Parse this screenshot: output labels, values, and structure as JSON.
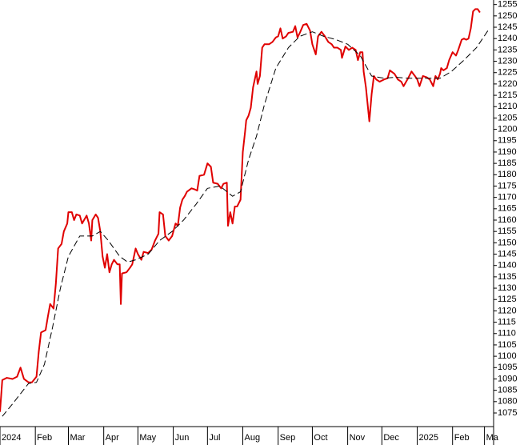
{
  "chart_data": {
    "type": "line",
    "xlim": [
      0,
      433
    ],
    "ylim": [
      1069,
      1257
    ],
    "xticks": [
      {
        "value": 0,
        "label": "2024"
      },
      {
        "value": 31,
        "label": "Feb"
      },
      {
        "value": 60,
        "label": "Mar"
      },
      {
        "value": 91,
        "label": "Apr"
      },
      {
        "value": 121,
        "label": "May"
      },
      {
        "value": 152,
        "label": "Jun"
      },
      {
        "value": 182,
        "label": "Jul"
      },
      {
        "value": 213,
        "label": "Aug"
      },
      {
        "value": 244,
        "label": "Sep"
      },
      {
        "value": 274,
        "label": "Oct"
      },
      {
        "value": 305,
        "label": "Nov"
      },
      {
        "value": 335,
        "label": "Dec"
      },
      {
        "value": 366,
        "label": "2025"
      },
      {
        "value": 397,
        "label": "Feb"
      },
      {
        "value": 425,
        "label": "Ma"
      }
    ],
    "yticks": [
      1075,
      1080,
      1085,
      1090,
      1095,
      1100,
      1105,
      1110,
      1115,
      1120,
      1125,
      1130,
      1135,
      1140,
      1145,
      1150,
      1155,
      1160,
      1165,
      1170,
      1175,
      1180,
      1185,
      1190,
      1195,
      1200,
      1205,
      1210,
      1215,
      1220,
      1225,
      1230,
      1235,
      1240,
      1245,
      1250,
      1255
    ],
    "series": [
      {
        "color": "#e00000",
        "dashed": false,
        "x": [
          0,
          2,
          6,
          11,
          15,
          18,
          21,
          25,
          28,
          32,
          34,
          36,
          40,
          42,
          44,
          47,
          49,
          51,
          54,
          56,
          59,
          60,
          63,
          65,
          67,
          70,
          72,
          76,
          78,
          80,
          81,
          84,
          86,
          88,
          90,
          92,
          94,
          96,
          98,
          100,
          103,
          105,
          106,
          107,
          111,
          114,
          116,
          119,
          121,
          124,
          126,
          130,
          133,
          136,
          139,
          140,
          143,
          145,
          148,
          151,
          154,
          156,
          158,
          160,
          162,
          164,
          168,
          171,
          173,
          175,
          179,
          182,
          185,
          187,
          191,
          194,
          196,
          199,
          200,
          202,
          204,
          206,
          208,
          211,
          213,
          215,
          216,
          218,
          220,
          222,
          225,
          226,
          228,
          230,
          232,
          236,
          239,
          242,
          244,
          246,
          248,
          251,
          253,
          257,
          259,
          261,
          263,
          266,
          269,
          272,
          274,
          277,
          279,
          282,
          285,
          288,
          291,
          293,
          296,
          299,
          300,
          303,
          306,
          309,
          312,
          314,
          316,
          318,
          319,
          321,
          324,
          326,
          328,
          330,
          333,
          337,
          340,
          342,
          346,
          349,
          352,
          354,
          358,
          361,
          364,
          366,
          368,
          371,
          374,
          377,
          380,
          382,
          384,
          386,
          387,
          389,
          392,
          394,
          397,
          400,
          402,
          405,
          407,
          409,
          411,
          413,
          415,
          417,
          419,
          421
        ],
        "values": [
          1075.5,
          1089.5,
          1090.5,
          1090,
          1091,
          1095,
          1090,
          1088.5,
          1088.5,
          1091,
          1102,
          1110.5,
          1111.5,
          1117.5,
          1123,
          1121,
          1132,
          1147.5,
          1149.5,
          1155,
          1158.5,
          1163.5,
          1163.5,
          1160,
          1162.5,
          1162,
          1158.5,
          1162,
          1158.5,
          1151,
          1160,
          1162.5,
          1161,
          1155,
          1144,
          1139,
          1145,
          1137,
          1140.5,
          1142.5,
          1140.5,
          1140.5,
          1123,
          1136.5,
          1137,
          1139,
          1140.5,
          1147.5,
          1145,
          1142.5,
          1146,
          1145.5,
          1147,
          1151,
          1154,
          1163.5,
          1162.5,
          1153,
          1151,
          1153,
          1158.5,
          1157.5,
          1165.5,
          1169,
          1170.5,
          1172.5,
          1174,
          1173.5,
          1173,
          1179.5,
          1180,
          1185,
          1183.5,
          1176.5,
          1176,
          1174,
          1176,
          1176.5,
          1157.5,
          1163.5,
          1158.5,
          1166,
          1166,
          1169,
          1190,
          1199,
          1204,
          1206,
          1209.5,
          1218.5,
          1225.5,
          1220,
          1223.5,
          1236,
          1237.5,
          1237.5,
          1238.5,
          1240.5,
          1241,
          1244.5,
          1240,
          1241,
          1242.5,
          1243,
          1245.5,
          1240.5,
          1242.5,
          1246,
          1246.5,
          1243.5,
          1237.5,
          1233,
          1241,
          1243,
          1241,
          1238.5,
          1237.5,
          1236,
          1236,
          1235,
          1231.5,
          1236.5,
          1235,
          1236,
          1235,
          1230.5,
          1234,
          1234,
          1225.5,
          1218.5,
          1203.5,
          1215.5,
          1223.5,
          1222,
          1221,
          1222,
          1222.5,
          1226,
          1224.5,
          1222,
          1221,
          1219,
          1222.5,
          1225.5,
          1223.5,
          1222,
          1219,
          1223.5,
          1223,
          1222,
          1219,
          1223.5,
          1222,
          1224.5,
          1227,
          1226,
          1227,
          1230.5,
          1234,
          1232.5,
          1235,
          1239.5,
          1240,
          1239.5,
          1240,
          1244.5,
          1252,
          1253,
          1253,
          1251.5
        ]
      },
      {
        "color": "#000000",
        "dashed": true,
        "x": [
          2,
          11,
          18,
          25,
          32,
          39,
          46,
          53,
          60,
          70,
          81,
          88,
          95,
          105,
          112,
          119,
          130,
          140,
          151,
          161,
          172,
          182,
          193,
          204,
          211,
          218,
          225,
          232,
          242,
          253,
          263,
          274,
          284,
          295,
          305,
          316,
          326,
          337,
          347,
          358,
          372,
          386,
          396,
          407,
          418,
          428
        ],
        "values": [
          1073.5,
          1079,
          1083.5,
          1088,
          1088.5,
          1096.5,
          1112.5,
          1130,
          1144,
          1153,
          1153,
          1155,
          1151,
          1144,
          1141.5,
          1142.5,
          1145,
          1151,
          1155,
          1160,
          1167,
          1174,
          1175,
          1170.5,
          1172.5,
          1186.5,
          1197,
          1211,
          1227,
          1236,
          1241,
          1243,
          1241,
          1239.5,
          1237.5,
          1232.5,
          1223.5,
          1222.5,
          1223,
          1222.5,
          1222.5,
          1222.5,
          1225.5,
          1230.5,
          1236,
          1243.5
        ]
      }
    ]
  }
}
